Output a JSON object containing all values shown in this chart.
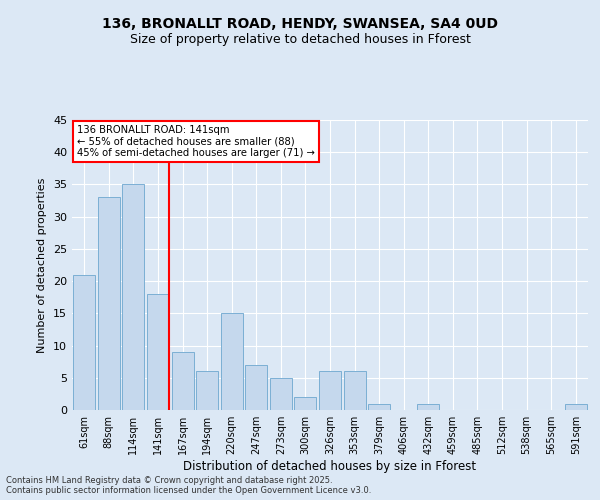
{
  "title1": "136, BRONALLT ROAD, HENDY, SWANSEA, SA4 0UD",
  "title2": "Size of property relative to detached houses in Fforest",
  "xlabel": "Distribution of detached houses by size in Fforest",
  "ylabel": "Number of detached properties",
  "categories": [
    "61sqm",
    "88sqm",
    "114sqm",
    "141sqm",
    "167sqm",
    "194sqm",
    "220sqm",
    "247sqm",
    "273sqm",
    "300sqm",
    "326sqm",
    "353sqm",
    "379sqm",
    "406sqm",
    "432sqm",
    "459sqm",
    "485sqm",
    "512sqm",
    "538sqm",
    "565sqm",
    "591sqm"
  ],
  "values": [
    21,
    33,
    35,
    18,
    9,
    6,
    15,
    7,
    5,
    2,
    6,
    6,
    1,
    0,
    1,
    0,
    0,
    0,
    0,
    0,
    1
  ],
  "bar_color": "#c5d8ed",
  "bar_edge_color": "#7bafd4",
  "vline_color": "red",
  "annotation_text": "136 BRONALLT ROAD: 141sqm\n← 55% of detached houses are smaller (88)\n45% of semi-detached houses are larger (71) →",
  "annotation_box_color": "white",
  "annotation_box_edge": "red",
  "ylim": [
    0,
    45
  ],
  "yticks": [
    0,
    5,
    10,
    15,
    20,
    25,
    30,
    35,
    40,
    45
  ],
  "bg_color": "#dce8f5",
  "grid_color": "white",
  "footnote": "Contains HM Land Registry data © Crown copyright and database right 2025.\nContains public sector information licensed under the Open Government Licence v3.0."
}
